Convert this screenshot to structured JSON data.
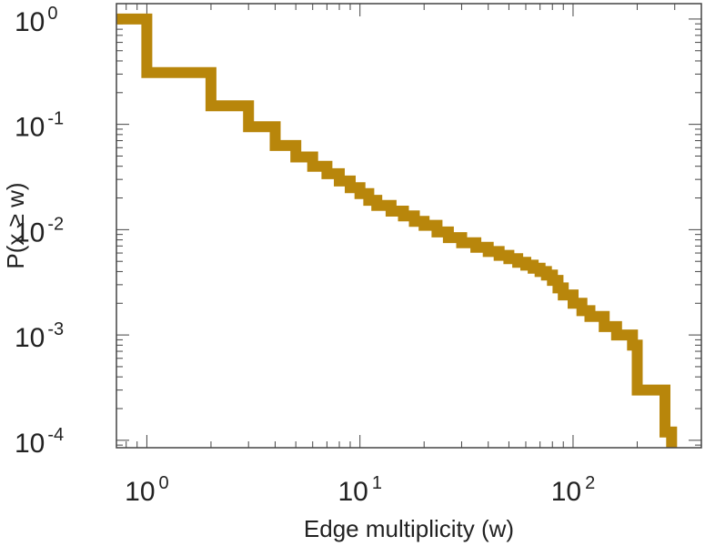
{
  "chart_data": {
    "type": "line",
    "step": true,
    "xlabel": "Edge multiplicity (w)",
    "ylabel": "P(x ≥ w)",
    "xscale": "log",
    "yscale": "log",
    "xlim": [
      0.72,
      400
    ],
    "ylim": [
      8.5e-05,
      1.4
    ],
    "grid": false,
    "legend": "none",
    "x_ticks": [
      {
        "value": 1,
        "base": "10",
        "exp": "0"
      },
      {
        "value": 10,
        "base": "10",
        "exp": "1"
      },
      {
        "value": 100,
        "base": "10",
        "exp": "2"
      }
    ],
    "y_ticks": [
      {
        "value": 1,
        "base": "10",
        "exp": "0"
      },
      {
        "value": 0.1,
        "base": "10",
        "exp": "-1"
      },
      {
        "value": 0.01,
        "base": "10",
        "exp": "-2"
      },
      {
        "value": 0.001,
        "base": "10",
        "exp": "-3"
      },
      {
        "value": 0.0001,
        "base": "10",
        "exp": "-4"
      }
    ],
    "series": [
      {
        "color": "#b8860b",
        "x": [
          0.72,
          1,
          2,
          3,
          4,
          5,
          6,
          7,
          8,
          9,
          10,
          11,
          12,
          14,
          16,
          18,
          20,
          23,
          26,
          30,
          35,
          40,
          45,
          50,
          55,
          60,
          65,
          70,
          75,
          80,
          85,
          90,
          100,
          110,
          120,
          140,
          160,
          190,
          200,
          270,
          290
        ],
        "y": [
          1,
          0.31,
          0.15,
          0.095,
          0.063,
          0.049,
          0.04,
          0.034,
          0.029,
          0.025,
          0.022,
          0.019,
          0.017,
          0.015,
          0.0135,
          0.012,
          0.011,
          0.0095,
          0.0084,
          0.0075,
          0.0068,
          0.0062,
          0.0057,
          0.0053,
          0.0049,
          0.0046,
          0.0043,
          0.004,
          0.0037,
          0.0033,
          0.0028,
          0.0024,
          0.002,
          0.0017,
          0.0015,
          0.0012,
          0.001,
          0.0008,
          0.0003,
          0.00012,
          9e-05
        ]
      }
    ]
  }
}
